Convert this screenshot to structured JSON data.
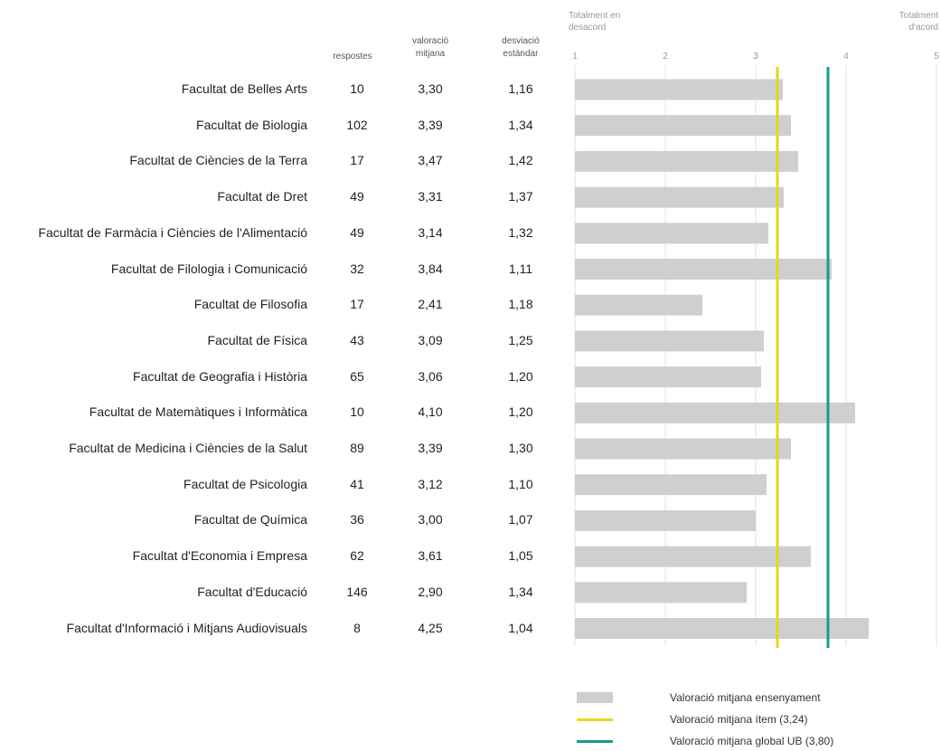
{
  "table": {
    "col_responses": "respostes",
    "col_mean": "valoració mitjana",
    "col_sd": "desviació estàndar"
  },
  "scale": {
    "left_label": "Totalment en desacord",
    "right_label": "Totalment d'acord"
  },
  "chart_data": {
    "type": "bar",
    "orientation": "horizontal",
    "xlim": [
      1,
      5
    ],
    "ticks": [
      "1",
      "2",
      "3",
      "4",
      "5"
    ],
    "grid": true,
    "categories": [
      "Facultat de Belles Arts",
      "Facultat de Biologia",
      "Facultat de Ciències de la Terra",
      "Facultat de Dret",
      "Facultat de Farmàcia i Ciències de l'Alimentació",
      "Facultat de Filologia i Comunicació",
      "Facultat de Filosofia",
      "Facultat de Física",
      "Facultat de Geografia i Història",
      "Facultat de Matemàtiques i Informàtica",
      "Facultat de Medicina i Ciències de la Salut",
      "Facultat de Psicologia",
      "Facultat de Química",
      "Facultat d'Economia i Empresa",
      "Facultat d'Educació",
      "Facultat d'Informació i Mitjans Audiovisuals"
    ],
    "responses": [
      "10",
      "102",
      "17",
      "49",
      "49",
      "32",
      "17",
      "43",
      "65",
      "10",
      "89",
      "41",
      "36",
      "62",
      "146",
      "8"
    ],
    "mean_labels": [
      "3,30",
      "3,39",
      "3,47",
      "3,31",
      "3,14",
      "3,84",
      "2,41",
      "3,09",
      "3,06",
      "4,10",
      "3,39",
      "3,12",
      "3,00",
      "3,61",
      "2,90",
      "4,25"
    ],
    "sd_labels": [
      "1,16",
      "1,34",
      "1,42",
      "1,37",
      "1,32",
      "1,11",
      "1,18",
      "1,25",
      "1,20",
      "1,20",
      "1,30",
      "1,10",
      "1,07",
      "1,05",
      "1,34",
      "1,04"
    ],
    "values": [
      3.3,
      3.39,
      3.47,
      3.31,
      3.14,
      3.84,
      2.41,
      3.09,
      3.06,
      4.1,
      3.39,
      3.12,
      3.0,
      3.61,
      2.9,
      4.25
    ],
    "reference_lines": [
      {
        "name": "Valoració mitjana ítem (3,24)",
        "value": 3.24,
        "color": "#e6d71a"
      },
      {
        "name": "Valoració mitjana global UB (3,80)",
        "value": 3.8,
        "color": "#1a9a8e"
      }
    ],
    "bar_color": "#cfcfcf",
    "bar_legend": "Valoració mitjana ensenyament",
    "legend_position": "bottom-right"
  }
}
